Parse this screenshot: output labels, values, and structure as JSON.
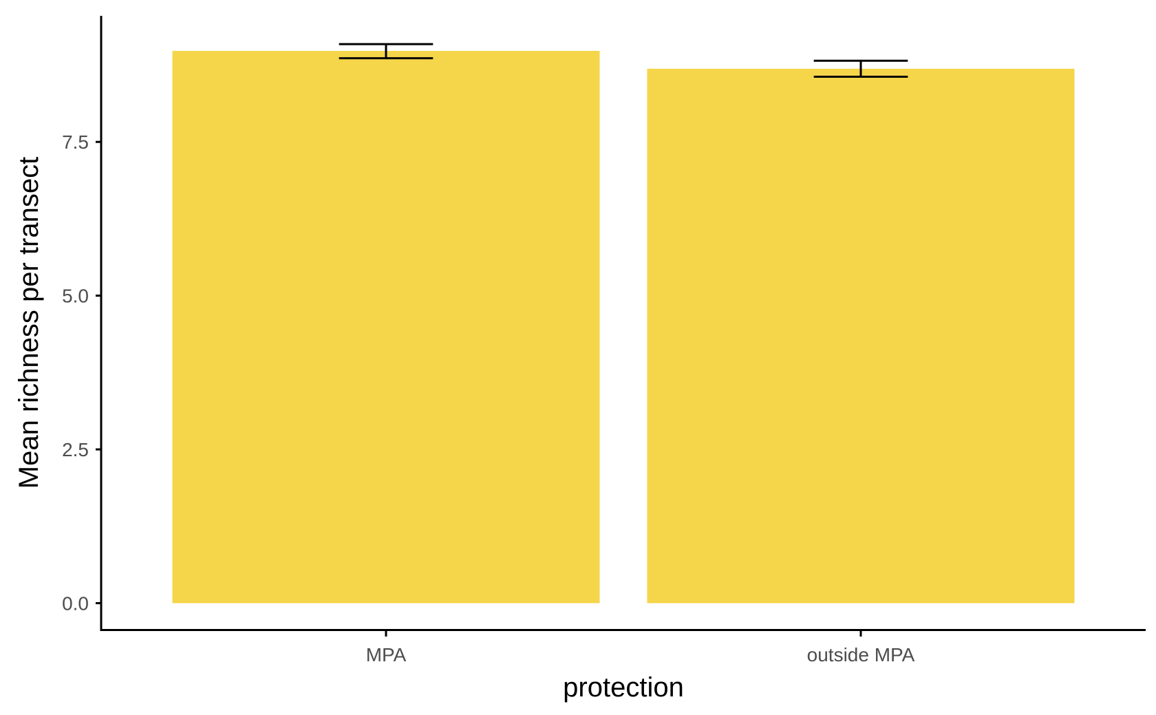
{
  "chart_data": {
    "type": "bar",
    "title": "",
    "xlabel": "protection",
    "ylabel": "Mean richness per transect",
    "categories": [
      "MPA",
      "outside MPA"
    ],
    "values": [
      8.98,
      8.69
    ],
    "error_bars": [
      {
        "lower": 8.86,
        "upper": 9.09
      },
      {
        "lower": 8.56,
        "upper": 8.82
      }
    ],
    "ylim": [
      -0.42,
      9.55
    ],
    "yticks": [
      0.0,
      2.5,
      5.0,
      7.5
    ],
    "ytick_labels": [
      "0.0",
      "2.5",
      "5.0",
      "7.5"
    ],
    "grid": false,
    "legend": "none",
    "colors": {
      "bar": "#F5D54A",
      "error_bar": "#000000",
      "axis": "#000000",
      "tick_label": "#4d4d4d"
    }
  }
}
